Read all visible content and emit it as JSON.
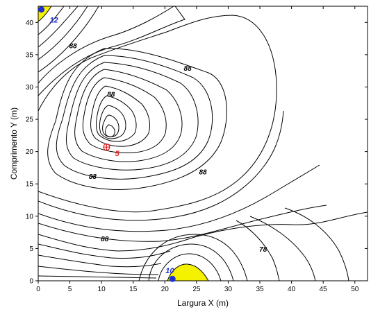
{
  "chart_data": {
    "type": "contour",
    "xlabel": "Largura X (m)",
    "ylabel": "Comprimento Y (m)",
    "xlim": [
      0,
      52
    ],
    "ylim": [
      0,
      42.5
    ],
    "x_ticks": [
      0,
      5,
      10,
      15,
      20,
      25,
      30,
      35,
      40,
      45,
      50
    ],
    "y_ticks": [
      0,
      5,
      10,
      15,
      20,
      25,
      30,
      35,
      40
    ],
    "contour_labels": [
      {
        "text": "88",
        "x": 5.5,
        "y": 36
      },
      {
        "text": "88",
        "x": 23.6,
        "y": 32.5
      },
      {
        "text": "88",
        "x": 11.5,
        "y": 28.5
      },
      {
        "text": "88",
        "x": 8.6,
        "y": 15.8
      },
      {
        "text": "88",
        "x": 26,
        "y": 16.5
      },
      {
        "text": "88",
        "x": 10.5,
        "y": 6.1
      },
      {
        "text": "78",
        "x": 35.5,
        "y": 4.5
      }
    ],
    "points": [
      {
        "label": "12",
        "x": 0.5,
        "y": 42,
        "color": "#1f2fd0"
      },
      {
        "label": "5",
        "x": 10.8,
        "y": 20.7,
        "color": "#e0201c"
      },
      {
        "label": "10",
        "x": 21.2,
        "y": 0.3,
        "color": "#1f2fd0"
      }
    ],
    "fill_color": "#f5f200",
    "line_color": "#000000"
  }
}
